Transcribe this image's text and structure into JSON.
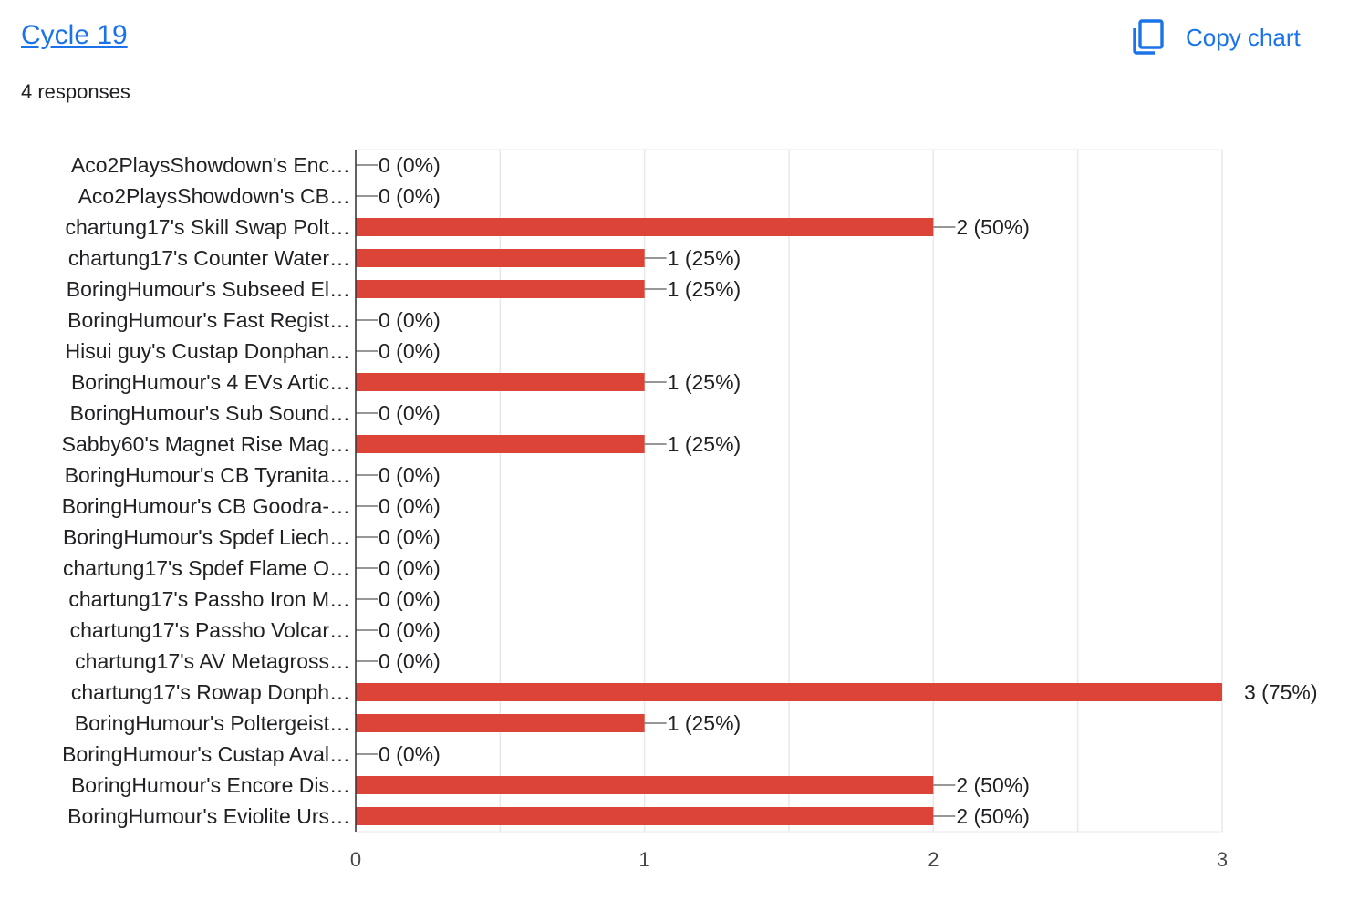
{
  "header": {
    "title": "Cycle 19",
    "responses": "4 responses",
    "copy_label": "Copy chart"
  },
  "icons": {
    "copy": "copy-icon"
  },
  "colors": {
    "bar": "#db4437",
    "link": "#1a73e8"
  },
  "chart_data": {
    "type": "bar",
    "orientation": "horizontal",
    "categories": [
      "Aco2PlaysShowdown's Enc…",
      "Aco2PlaysShowdown's CB…",
      "chartung17's Skill Swap Polt…",
      "chartung17's Counter Water…",
      "BoringHumour's Subseed El…",
      "BoringHumour's Fast Regist…",
      "Hisui guy's Custap Donphan…",
      "BoringHumour's 4 EVs Artic…",
      "BoringHumour's Sub Sound…",
      "Sabby60's Magnet Rise Mag…",
      "BoringHumour's CB Tyranita…",
      "BoringHumour's CB Goodra-…",
      "BoringHumour's Spdef Liech…",
      "chartung17's Spdef Flame O…",
      "chartung17's Passho Iron M…",
      "chartung17's Passho Volcar…",
      "chartung17's AV Metagross…",
      "chartung17's Rowap Donph…",
      "BoringHumour's Poltergeist…",
      "BoringHumour's Custap Aval…",
      "BoringHumour's Encore Dis…",
      "BoringHumour's Eviolite Urs…"
    ],
    "values": [
      0,
      0,
      2,
      1,
      1,
      0,
      0,
      1,
      0,
      1,
      0,
      0,
      0,
      0,
      0,
      0,
      0,
      3,
      1,
      0,
      2,
      2
    ],
    "value_labels": [
      "0 (0%)",
      "0 (0%)",
      "2 (50%)",
      "1 (25%)",
      "1 (25%)",
      "0 (0%)",
      "0 (0%)",
      "1 (25%)",
      "0 (0%)",
      "1 (25%)",
      "0 (0%)",
      "0 (0%)",
      "0 (0%)",
      "0 (0%)",
      "0 (0%)",
      "0 (0%)",
      "0 (0%)",
      "3 (75%)",
      "1 (25%)",
      "0 (0%)",
      "2 (50%)",
      "2 (50%)"
    ],
    "xlim": [
      0,
      3
    ],
    "xticks": [
      "0",
      "1",
      "2",
      "3"
    ],
    "grid": true
  }
}
